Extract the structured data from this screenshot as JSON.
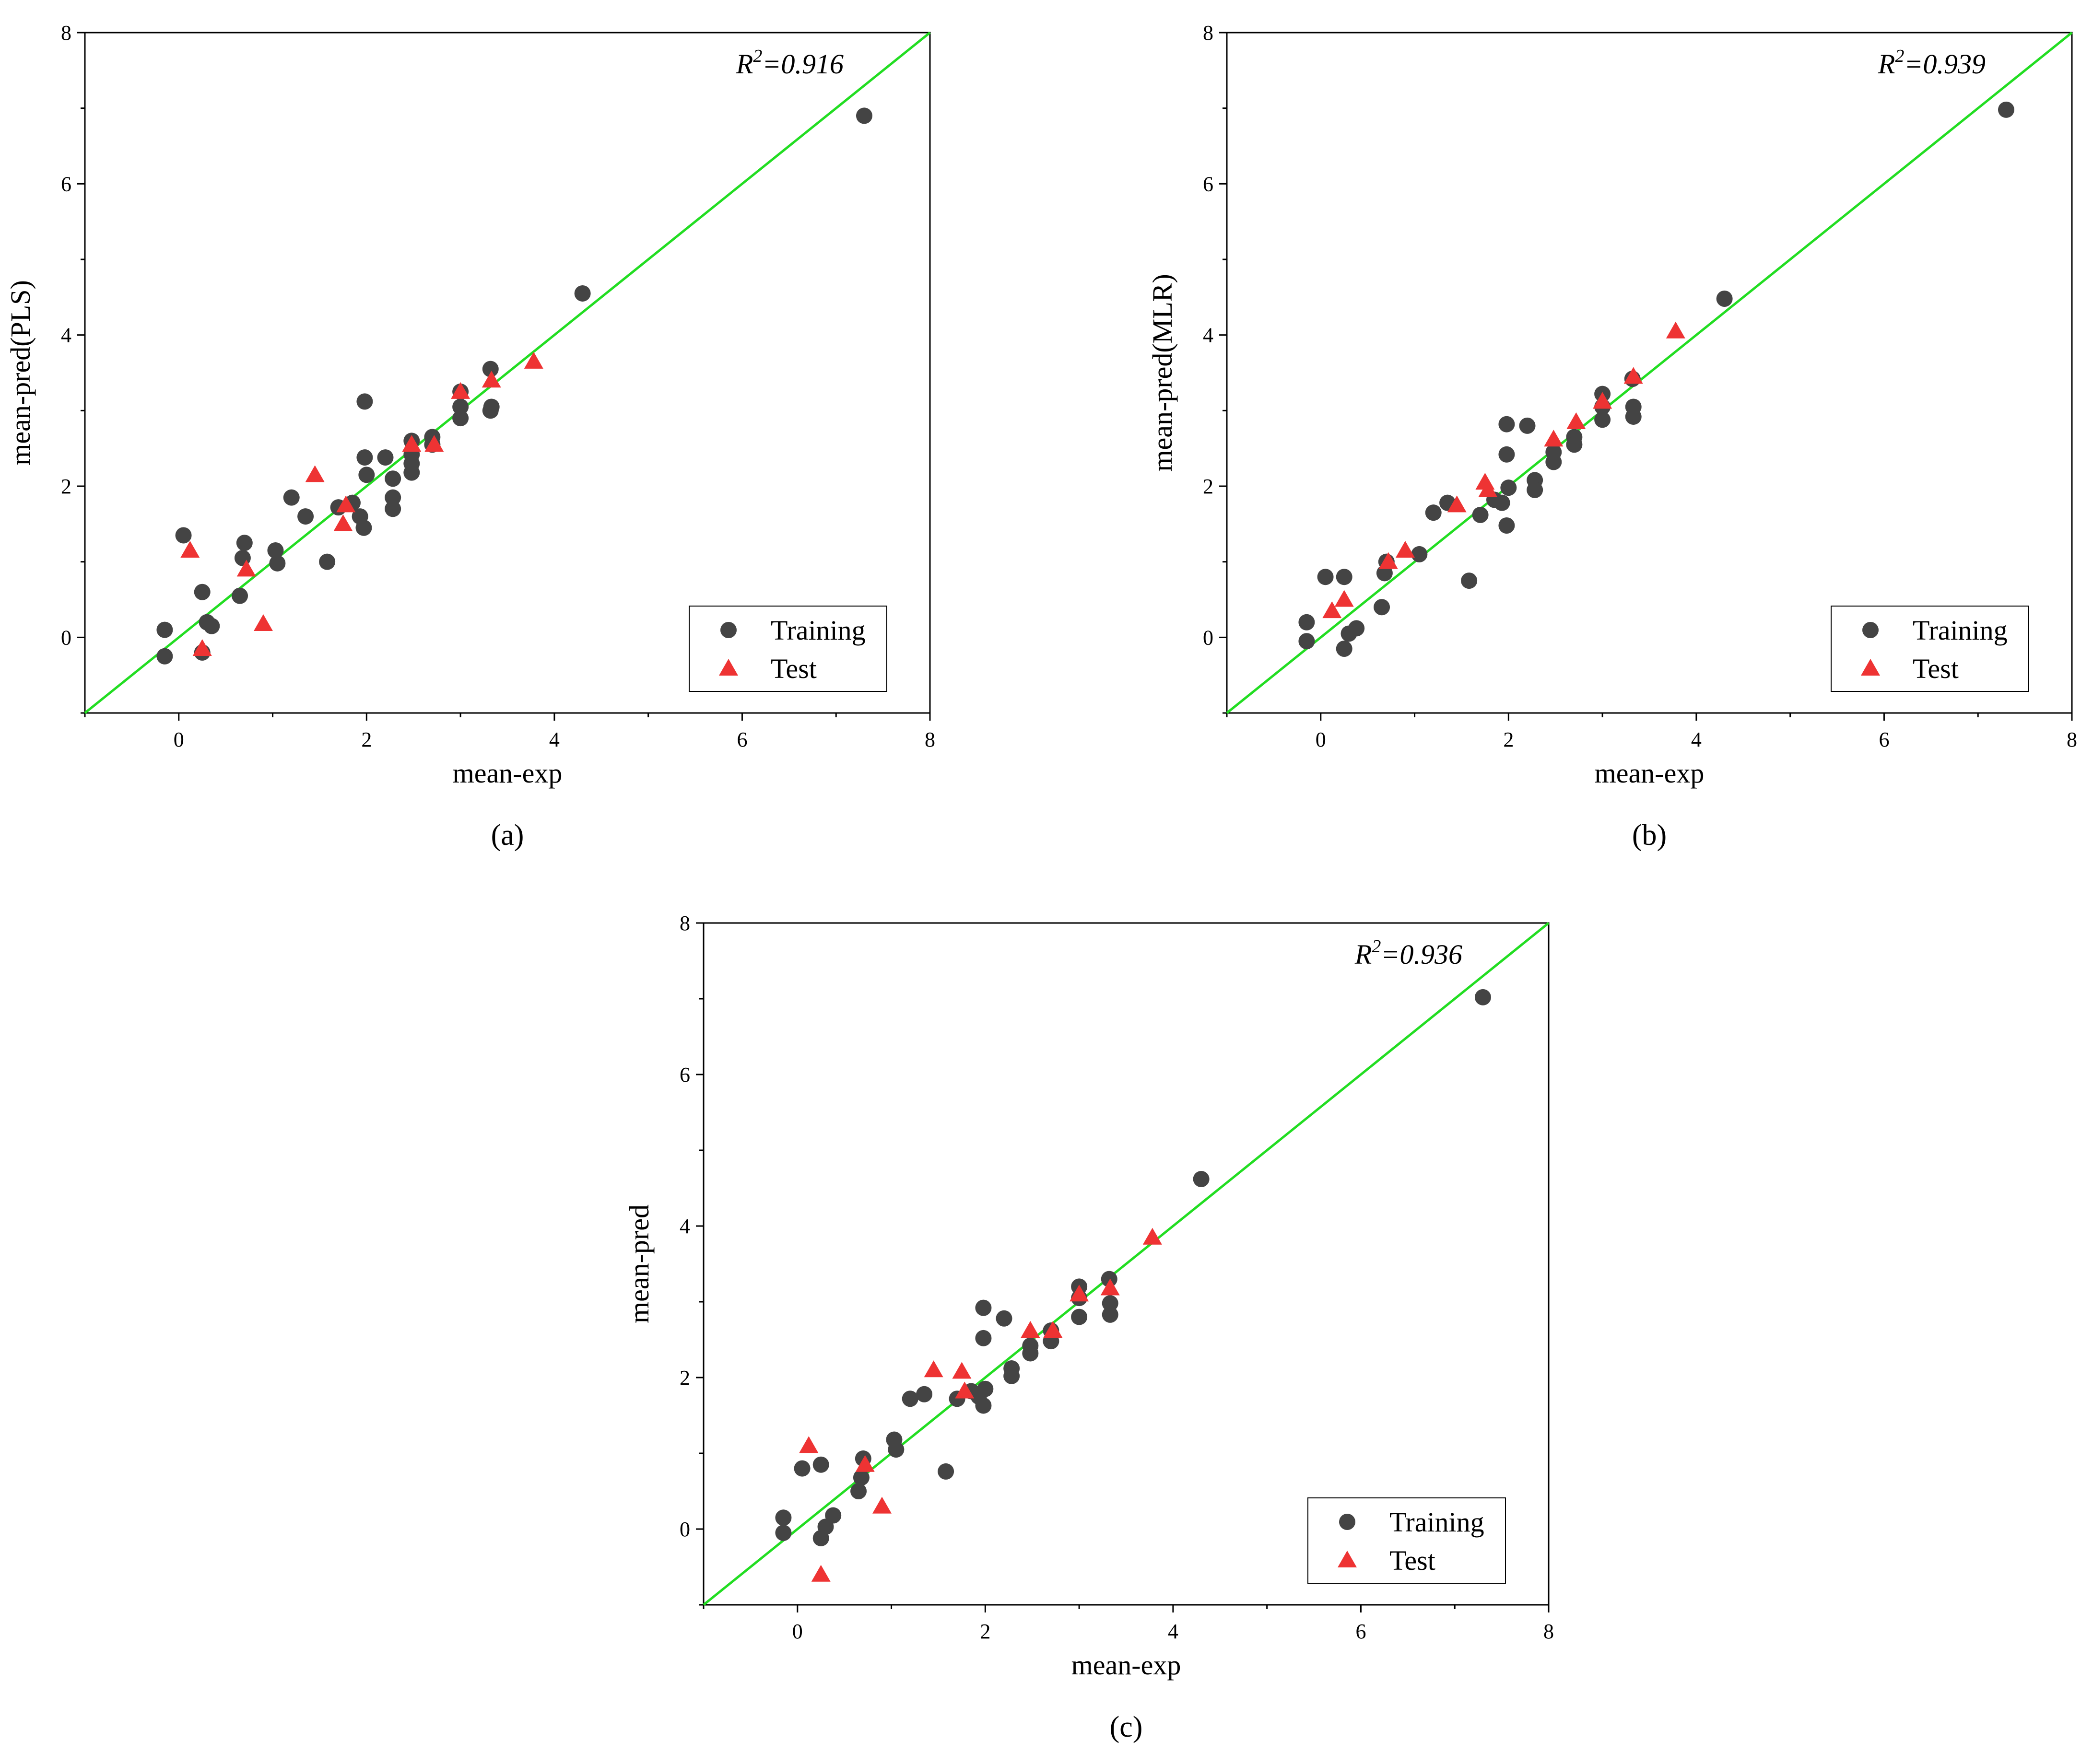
{
  "colors": {
    "training": "#444444",
    "test": "#ee3333",
    "fit_line": "#22dd22"
  },
  "chart_data": [
    {
      "type": "scatter",
      "panel": "(a)",
      "xlabel": "mean-exp",
      "ylabel": "mean-pred(PLS)",
      "xlim": [
        -1,
        8
      ],
      "ylim": [
        -1,
        8
      ],
      "xticks": [
        0,
        2,
        4,
        6,
        8
      ],
      "yticks": [
        0,
        2,
        4,
        6,
        8
      ],
      "r2_label": "R",
      "r2_sup": "2",
      "r2_value": "=0.916",
      "legend": {
        "training": "Training",
        "test": "Test"
      },
      "fit_line": [
        [
          -1,
          -1
        ],
        [
          8,
          8
        ]
      ],
      "series": [
        {
          "name": "Training",
          "marker": "circle",
          "points": [
            [
              -0.15,
              0.1
            ],
            [
              -0.15,
              -0.25
            ],
            [
              0.05,
              1.35
            ],
            [
              0.25,
              0.6
            ],
            [
              0.25,
              -0.2
            ],
            [
              0.3,
              0.2
            ],
            [
              0.35,
              0.15
            ],
            [
              0.65,
              0.55
            ],
            [
              0.68,
              1.05
            ],
            [
              0.7,
              1.25
            ],
            [
              1.03,
              1.15
            ],
            [
              1.05,
              0.98
            ],
            [
              1.2,
              1.85
            ],
            [
              1.35,
              1.6
            ],
            [
              1.58,
              1.0
            ],
            [
              1.7,
              1.72
            ],
            [
              1.85,
              1.78
            ],
            [
              1.93,
              1.6
            ],
            [
              1.97,
              1.45
            ],
            [
              1.98,
              3.12
            ],
            [
              1.98,
              2.38
            ],
            [
              2.0,
              2.15
            ],
            [
              2.2,
              2.38
            ],
            [
              2.28,
              2.1
            ],
            [
              2.28,
              1.85
            ],
            [
              2.28,
              1.7
            ],
            [
              2.48,
              2.6
            ],
            [
              2.48,
              2.42
            ],
            [
              2.48,
              2.3
            ],
            [
              2.48,
              2.18
            ],
            [
              2.7,
              2.65
            ],
            [
              2.7,
              2.55
            ],
            [
              3.0,
              3.25
            ],
            [
              3.0,
              3.05
            ],
            [
              3.0,
              2.9
            ],
            [
              3.32,
              3.55
            ],
            [
              3.32,
              3.0
            ],
            [
              3.33,
              3.05
            ],
            [
              4.3,
              4.55
            ],
            [
              7.3,
              6.9
            ]
          ]
        },
        {
          "name": "Test",
          "marker": "triangle",
          "points": [
            [
              0.12,
              1.15
            ],
            [
              0.25,
              -0.15
            ],
            [
              0.72,
              0.9
            ],
            [
              0.9,
              0.18
            ],
            [
              1.45,
              2.15
            ],
            [
              1.75,
              1.5
            ],
            [
              1.78,
              1.75
            ],
            [
              2.48,
              2.55
            ],
            [
              2.72,
              2.55
            ],
            [
              3.0,
              3.25
            ],
            [
              3.33,
              3.4
            ],
            [
              3.78,
              3.65
            ]
          ]
        }
      ]
    },
    {
      "type": "scatter",
      "panel": "(b)",
      "xlabel": "mean-exp",
      "ylabel": "mean-pred(MLR)",
      "xlim": [
        -1,
        8
      ],
      "ylim": [
        -1,
        8
      ],
      "xticks": [
        0,
        2,
        4,
        6,
        8
      ],
      "yticks": [
        0,
        2,
        4,
        6,
        8
      ],
      "r2_label": "R",
      "r2_sup": "2",
      "r2_value": "=0.939",
      "legend": {
        "training": "Training",
        "test": "Test"
      },
      "fit_line": [
        [
          -1,
          -1
        ],
        [
          8,
          8
        ]
      ],
      "series": [
        {
          "name": "Training",
          "marker": "circle",
          "points": [
            [
              -0.15,
              0.2
            ],
            [
              -0.15,
              -0.05
            ],
            [
              0.05,
              0.8
            ],
            [
              0.25,
              0.8
            ],
            [
              0.25,
              -0.15
            ],
            [
              0.3,
              0.05
            ],
            [
              0.38,
              0.12
            ],
            [
              0.65,
              0.4
            ],
            [
              0.68,
              0.85
            ],
            [
              0.7,
              1.0
            ],
            [
              1.05,
              1.1
            ],
            [
              1.2,
              1.65
            ],
            [
              1.35,
              1.78
            ],
            [
              1.58,
              0.75
            ],
            [
              1.7,
              1.62
            ],
            [
              1.85,
              1.82
            ],
            [
              1.93,
              1.78
            ],
            [
              1.98,
              2.82
            ],
            [
              1.98,
              2.42
            ],
            [
              1.98,
              1.48
            ],
            [
              2.0,
              1.98
            ],
            [
              2.2,
              2.8
            ],
            [
              2.28,
              2.08
            ],
            [
              2.28,
              1.95
            ],
            [
              2.48,
              2.45
            ],
            [
              2.48,
              2.32
            ],
            [
              2.7,
              2.65
            ],
            [
              2.7,
              2.55
            ],
            [
              3.0,
              3.22
            ],
            [
              3.0,
              3.05
            ],
            [
              3.0,
              2.88
            ],
            [
              3.32,
              3.42
            ],
            [
              3.33,
              3.05
            ],
            [
              3.33,
              2.92
            ],
            [
              4.3,
              4.48
            ],
            [
              7.3,
              6.98
            ]
          ]
        },
        {
          "name": "Test",
          "marker": "triangle",
          "points": [
            [
              0.12,
              0.35
            ],
            [
              0.25,
              0.5
            ],
            [
              0.72,
              1.0
            ],
            [
              0.9,
              1.15
            ],
            [
              1.45,
              1.75
            ],
            [
              1.75,
              2.05
            ],
            [
              1.78,
              1.95
            ],
            [
              2.48,
              2.62
            ],
            [
              2.72,
              2.85
            ],
            [
              3.0,
              3.12
            ],
            [
              3.33,
              3.45
            ],
            [
              3.78,
              4.05
            ]
          ]
        }
      ]
    },
    {
      "type": "scatter",
      "panel": "(c)",
      "xlabel": "mean-exp",
      "ylabel": "mean-pred",
      "xlim": [
        -1,
        8
      ],
      "ylim": [
        -1,
        8
      ],
      "xticks": [
        0,
        2,
        4,
        6,
        8
      ],
      "yticks": [
        0,
        2,
        4,
        6,
        8
      ],
      "r2_label": "R",
      "r2_sup": "2",
      "r2_value": "=0.936",
      "legend": {
        "training": "Training",
        "test": "Test"
      },
      "fit_line": [
        [
          -1,
          -1
        ],
        [
          8,
          8
        ]
      ],
      "series": [
        {
          "name": "Training",
          "marker": "circle",
          "points": [
            [
              -0.15,
              0.15
            ],
            [
              -0.15,
              -0.05
            ],
            [
              0.05,
              0.8
            ],
            [
              0.25,
              0.85
            ],
            [
              0.25,
              -0.12
            ],
            [
              0.3,
              0.03
            ],
            [
              0.38,
              0.18
            ],
            [
              0.65,
              0.5
            ],
            [
              0.68,
              0.68
            ],
            [
              0.7,
              0.93
            ],
            [
              1.03,
              1.18
            ],
            [
              1.05,
              1.05
            ],
            [
              1.2,
              1.72
            ],
            [
              1.35,
              1.78
            ],
            [
              1.58,
              0.76
            ],
            [
              1.7,
              1.72
            ],
            [
              1.85,
              1.82
            ],
            [
              1.93,
              1.75
            ],
            [
              1.98,
              2.92
            ],
            [
              1.98,
              2.52
            ],
            [
              1.98,
              1.63
            ],
            [
              2.0,
              1.85
            ],
            [
              2.2,
              2.78
            ],
            [
              2.28,
              2.12
            ],
            [
              2.28,
              2.02
            ],
            [
              2.48,
              2.42
            ],
            [
              2.48,
              2.32
            ],
            [
              2.7,
              2.62
            ],
            [
              2.7,
              2.48
            ],
            [
              3.0,
              3.2
            ],
            [
              3.0,
              3.05
            ],
            [
              3.0,
              2.8
            ],
            [
              3.32,
              3.3
            ],
            [
              3.33,
              2.98
            ],
            [
              3.33,
              2.83
            ],
            [
              4.3,
              4.62
            ],
            [
              7.3,
              7.02
            ]
          ]
        },
        {
          "name": "Test",
          "marker": "triangle",
          "points": [
            [
              0.12,
              1.1
            ],
            [
              0.25,
              -0.6
            ],
            [
              0.72,
              0.85
            ],
            [
              0.9,
              0.3
            ],
            [
              1.45,
              2.1
            ],
            [
              1.75,
              2.08
            ],
            [
              1.78,
              1.82
            ],
            [
              2.48,
              2.62
            ],
            [
              2.72,
              2.62
            ],
            [
              3.0,
              3.1
            ],
            [
              3.33,
              3.18
            ],
            [
              3.78,
              3.85
            ]
          ]
        }
      ]
    }
  ]
}
